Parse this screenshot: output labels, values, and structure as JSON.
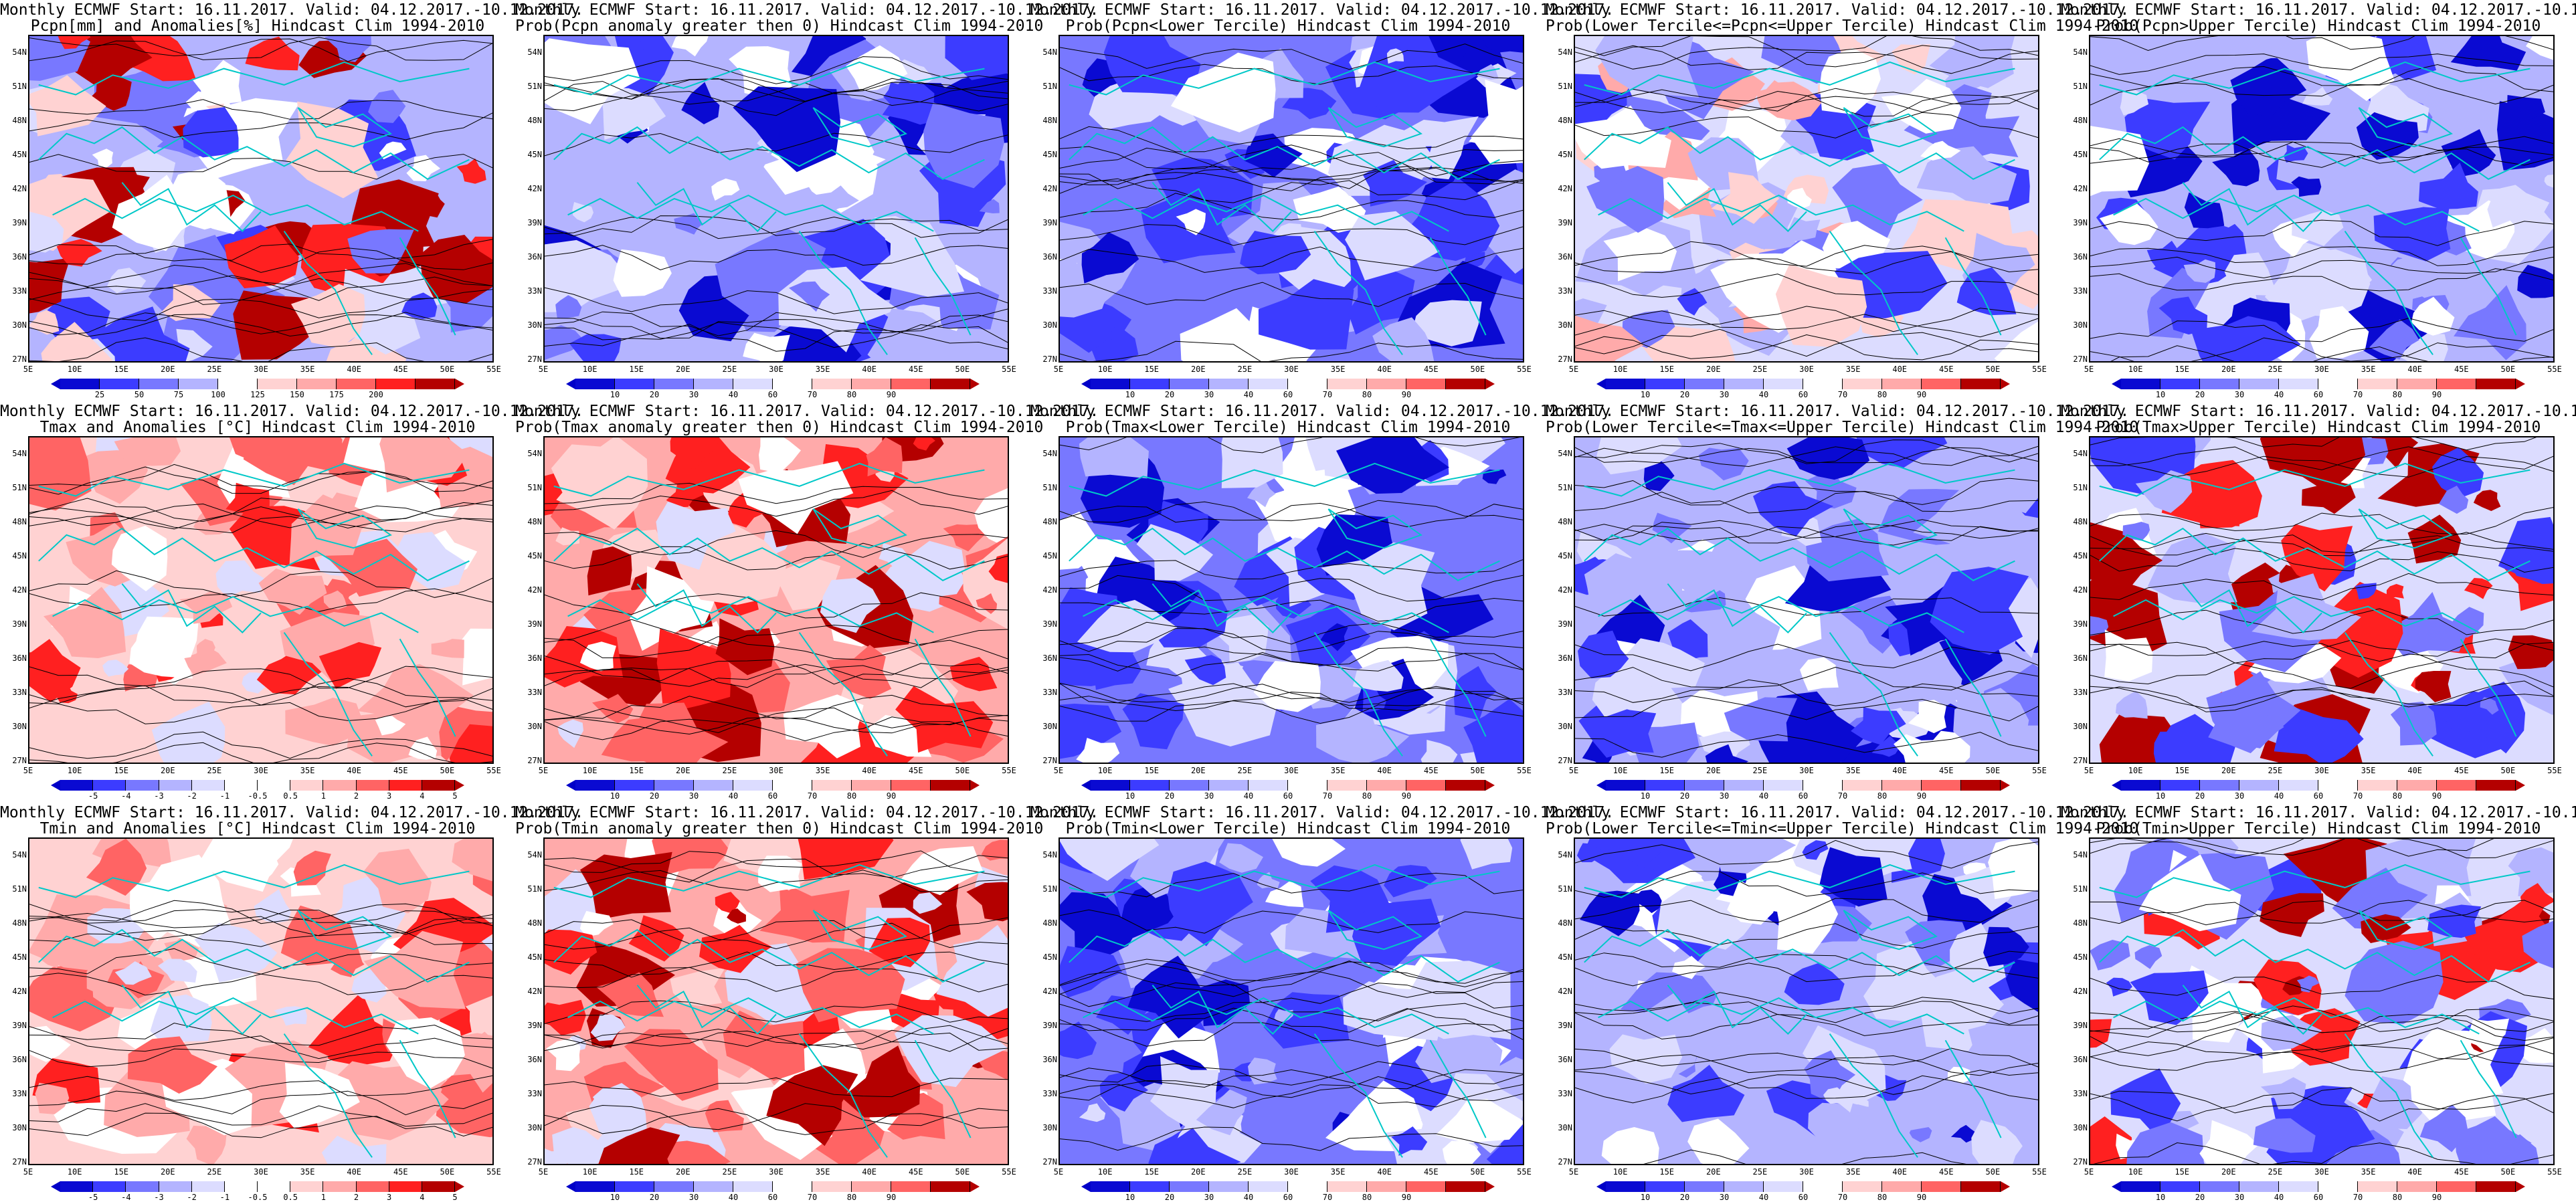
{
  "shared": {
    "title_line1": "Monthly ECMWF Start: 16.11.2017. Valid: 04.12.2017.-10.12.2017.",
    "lat_ticks": [
      "54N",
      "51N",
      "48N",
      "45N",
      "42N",
      "39N",
      "36N",
      "33N",
      "30N",
      "27N"
    ],
    "lon_ticks": [
      "5E",
      "10E",
      "15E",
      "20E",
      "25E",
      "30E",
      "35E",
      "40E",
      "45E",
      "50E",
      "55E"
    ],
    "prob_ticks": [
      "10",
      "20",
      "30",
      "40",
      "60",
      "70",
      "80",
      "90"
    ]
  },
  "colors": {
    "deep_blue": "#0a0ad2",
    "blue": "#3c3cff",
    "mid_blue": "#7878ff",
    "light_blue": "#b4b4ff",
    "pale_blue": "#dcdcff",
    "white": "#ffffff",
    "pale_red": "#ffd2d2",
    "light_red": "#ffaaaa",
    "mid_red": "#ff6464",
    "red": "#ff2020",
    "deep_red": "#b40000",
    "coast": "#00c8c8",
    "contour": "#000000"
  },
  "panels": [
    {
      "title": "Pcpn[mm] and Anomalies[%] Hindcast Clim 1994-2010",
      "colorbar": [
        "25",
        "50",
        "75",
        "100",
        "125",
        "150",
        "175",
        "200"
      ],
      "tone": "precip"
    },
    {
      "title": "Prob(Pcpn anomaly greater then 0) Hindcast Clim 1994-2010",
      "colorbar": [
        "10",
        "20",
        "30",
        "40",
        "60",
        "70",
        "80",
        "90"
      ],
      "tone": "blue"
    },
    {
      "title": "Prob(Pcpn<Lower Tercile) Hindcast Clim 1994-2010",
      "colorbar": [
        "10",
        "20",
        "30",
        "40",
        "60",
        "70",
        "80",
        "90"
      ],
      "tone": "deepblue"
    },
    {
      "title": "Prob(Lower Tercile<=Pcpn<=Upper Tercile) Hindcast Clim 1994-2010",
      "colorbar": [
        "10",
        "20",
        "30",
        "40",
        "60",
        "70",
        "80",
        "90"
      ],
      "tone": "mixed"
    },
    {
      "title": "Prob(Pcpn>Upper Tercile) Hindcast Clim 1994-2010",
      "colorbar": [
        "10",
        "20",
        "30",
        "40",
        "60",
        "70",
        "80",
        "90"
      ],
      "tone": "blue"
    },
    {
      "title": "Tmax and Anomalies [°C] Hindcast Clim 1994-2010",
      "colorbar": [
        "-5",
        "-4",
        "-3",
        "-2",
        "-1",
        "-0.5",
        "0.5",
        "1",
        "2",
        "3",
        "4",
        "5"
      ],
      "tone": "warm"
    },
    {
      "title": "Prob(Tmax anomaly greater then 0) Hindcast Clim 1994-2010",
      "colorbar": [
        "10",
        "20",
        "30",
        "40",
        "60",
        "70",
        "80",
        "90"
      ],
      "tone": "hot"
    },
    {
      "title": "Prob(Tmax<Lower Tercile) Hindcast Clim 1994-2010",
      "colorbar": [
        "10",
        "20",
        "30",
        "40",
        "60",
        "70",
        "80",
        "90"
      ],
      "tone": "deepblue"
    },
    {
      "title": "Prob(Lower Tercile<=Tmax<=Upper Tercile) Hindcast Clim 1994-2010",
      "colorbar": [
        "10",
        "20",
        "30",
        "40",
        "60",
        "70",
        "80",
        "90"
      ],
      "tone": "blue"
    },
    {
      "title": "Prob(Tmax>Upper Tercile) Hindcast Clim 1994-2010",
      "colorbar": [
        "10",
        "20",
        "30",
        "40",
        "60",
        "70",
        "80",
        "90"
      ],
      "tone": "mixedred"
    },
    {
      "title": "Tmin and Anomalies [°C] Hindcast Clim 1994-2010",
      "colorbar": [
        "-5",
        "-4",
        "-3",
        "-2",
        "-1",
        "-0.5",
        "0.5",
        "1",
        "2",
        "3",
        "4",
        "5"
      ],
      "tone": "warm"
    },
    {
      "title": "Prob(Tmin anomaly greater then 0) Hindcast Clim 1994-2010",
      "colorbar": [
        "10",
        "20",
        "30",
        "40",
        "60",
        "70",
        "80",
        "90"
      ],
      "tone": "hot"
    },
    {
      "title": "Prob(Tmin<Lower Tercile) Hindcast Clim 1994-2010",
      "colorbar": [
        "10",
        "20",
        "30",
        "40",
        "60",
        "70",
        "80",
        "90"
      ],
      "tone": "deepblue"
    },
    {
      "title": "Prob(Lower Tercile<=Tmin<=Upper Tercile) Hindcast Clim 1994-2010",
      "colorbar": [
        "10",
        "20",
        "30",
        "40",
        "60",
        "70",
        "80",
        "90"
      ],
      "tone": "blue"
    },
    {
      "title": "Prob(Tmin>Upper Tercile) Hindcast Clim 1994-2010",
      "colorbar": [
        "10",
        "20",
        "30",
        "40",
        "60",
        "70",
        "80",
        "90"
      ],
      "tone": "mixedred"
    }
  ]
}
